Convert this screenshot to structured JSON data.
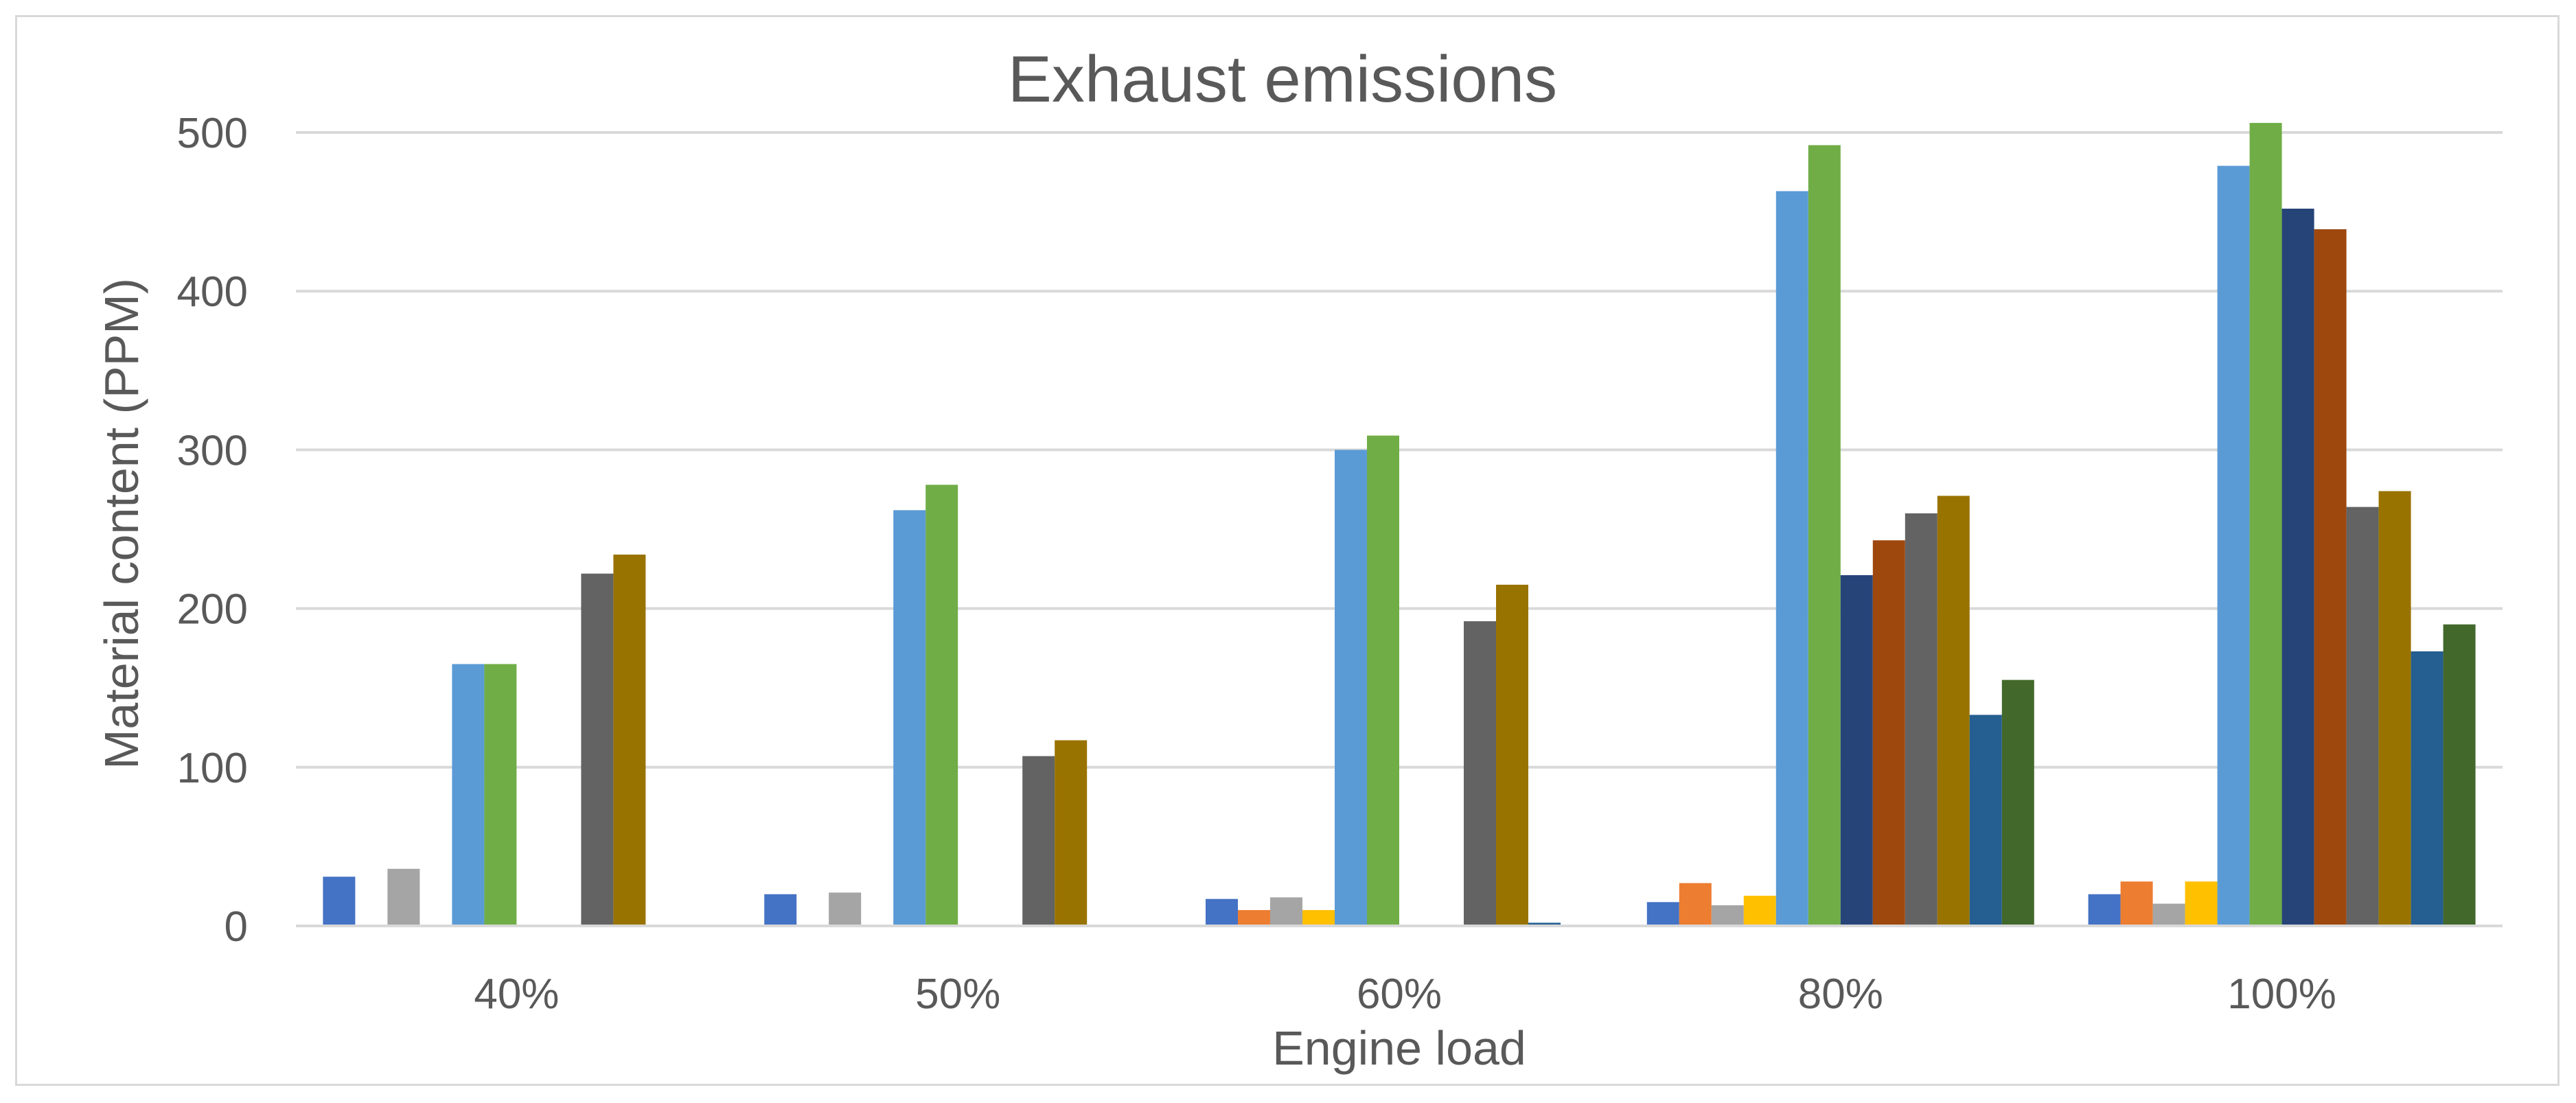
{
  "chart_data": {
    "type": "bar",
    "title": "Exhaust emissions",
    "xlabel": "Engine load",
    "ylabel": "Material content (PPM)",
    "categories": [
      "40%",
      "50%",
      "60%",
      "80%",
      "100%"
    ],
    "ylim": [
      0,
      500
    ],
    "yticks": [
      0,
      100,
      200,
      300,
      400,
      500
    ],
    "grid": true,
    "legend": "none",
    "series": [
      {
        "color": "#4472C4",
        "values": [
          31,
          20,
          17,
          15,
          20
        ]
      },
      {
        "color": "#ED7D31",
        "values": [
          0,
          0,
          10,
          27,
          28
        ]
      },
      {
        "color": "#A5A5A5",
        "values": [
          36,
          21,
          18,
          13,
          14
        ]
      },
      {
        "color": "#FFC000",
        "values": [
          0,
          0,
          10,
          19,
          28
        ]
      },
      {
        "color": "#5B9BD5",
        "values": [
          165,
          262,
          300,
          463,
          479
        ]
      },
      {
        "color": "#70AD47",
        "values": [
          165,
          278,
          309,
          492,
          506
        ]
      },
      {
        "color": "#264478",
        "values": [
          0,
          0,
          0,
          221,
          452
        ]
      },
      {
        "color": "#9E480E",
        "values": [
          0,
          0,
          0,
          243,
          439
        ]
      },
      {
        "color": "#636363",
        "values": [
          222,
          107,
          192,
          260,
          264
        ]
      },
      {
        "color": "#997300",
        "values": [
          234,
          117,
          215,
          271,
          274
        ]
      },
      {
        "color": "#255E91",
        "values": [
          0,
          0,
          2,
          133,
          173
        ]
      },
      {
        "color": "#43682B",
        "values": [
          0,
          0,
          0,
          155,
          190
        ]
      }
    ]
  }
}
